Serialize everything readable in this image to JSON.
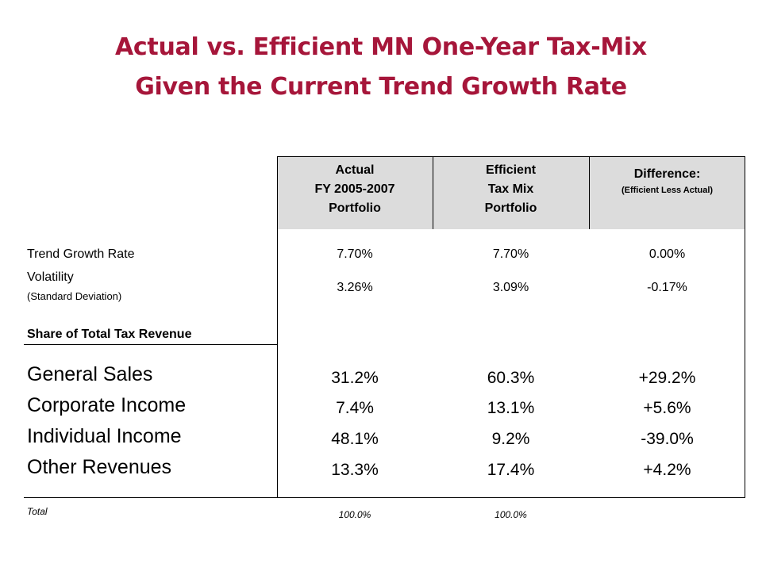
{
  "title": {
    "line1": "Actual vs. Efficient MN One-Year Tax-Mix",
    "line2": "Given the Current Trend Growth Rate"
  },
  "colors": {
    "title": "#a6163a",
    "header_bg": "#dcdcdc"
  },
  "headers": {
    "actual": [
      "Actual",
      "FY 2005-2007",
      "Portfolio"
    ],
    "efficient": [
      "Efficient",
      "Tax Mix",
      "Portfolio"
    ],
    "difference": {
      "main": "Difference:",
      "sub": "(Efficient Less Actual)"
    }
  },
  "rows": {
    "trend": {
      "label": "Trend Growth Rate",
      "actual": "7.70%",
      "efficient": "7.70%",
      "difference": "0.00%"
    },
    "volatility": {
      "label": "Volatility",
      "sublabel": "(Standard Deviation)",
      "actual": "3.26%",
      "efficient": "3.09%",
      "difference": "-0.17%"
    },
    "share_header": "Share of Total Tax Revenue",
    "general_sales": {
      "label": "General Sales",
      "actual": "31.2%",
      "efficient": "60.3%",
      "difference": "+29.2%"
    },
    "corporate": {
      "label": "Corporate Income",
      "actual": "7.4%",
      "efficient": "13.1%",
      "difference": "+5.6%"
    },
    "individual": {
      "label": "Individual Income",
      "actual": "48.1%",
      "efficient": "9.2%",
      "difference": "-39.0%"
    },
    "other": {
      "label": "Other Revenues",
      "actual": "13.3%",
      "efficient": "17.4%",
      "difference": "+4.2%"
    },
    "total": {
      "label": "Total",
      "actual": "100.0%",
      "efficient": "100.0%"
    }
  }
}
